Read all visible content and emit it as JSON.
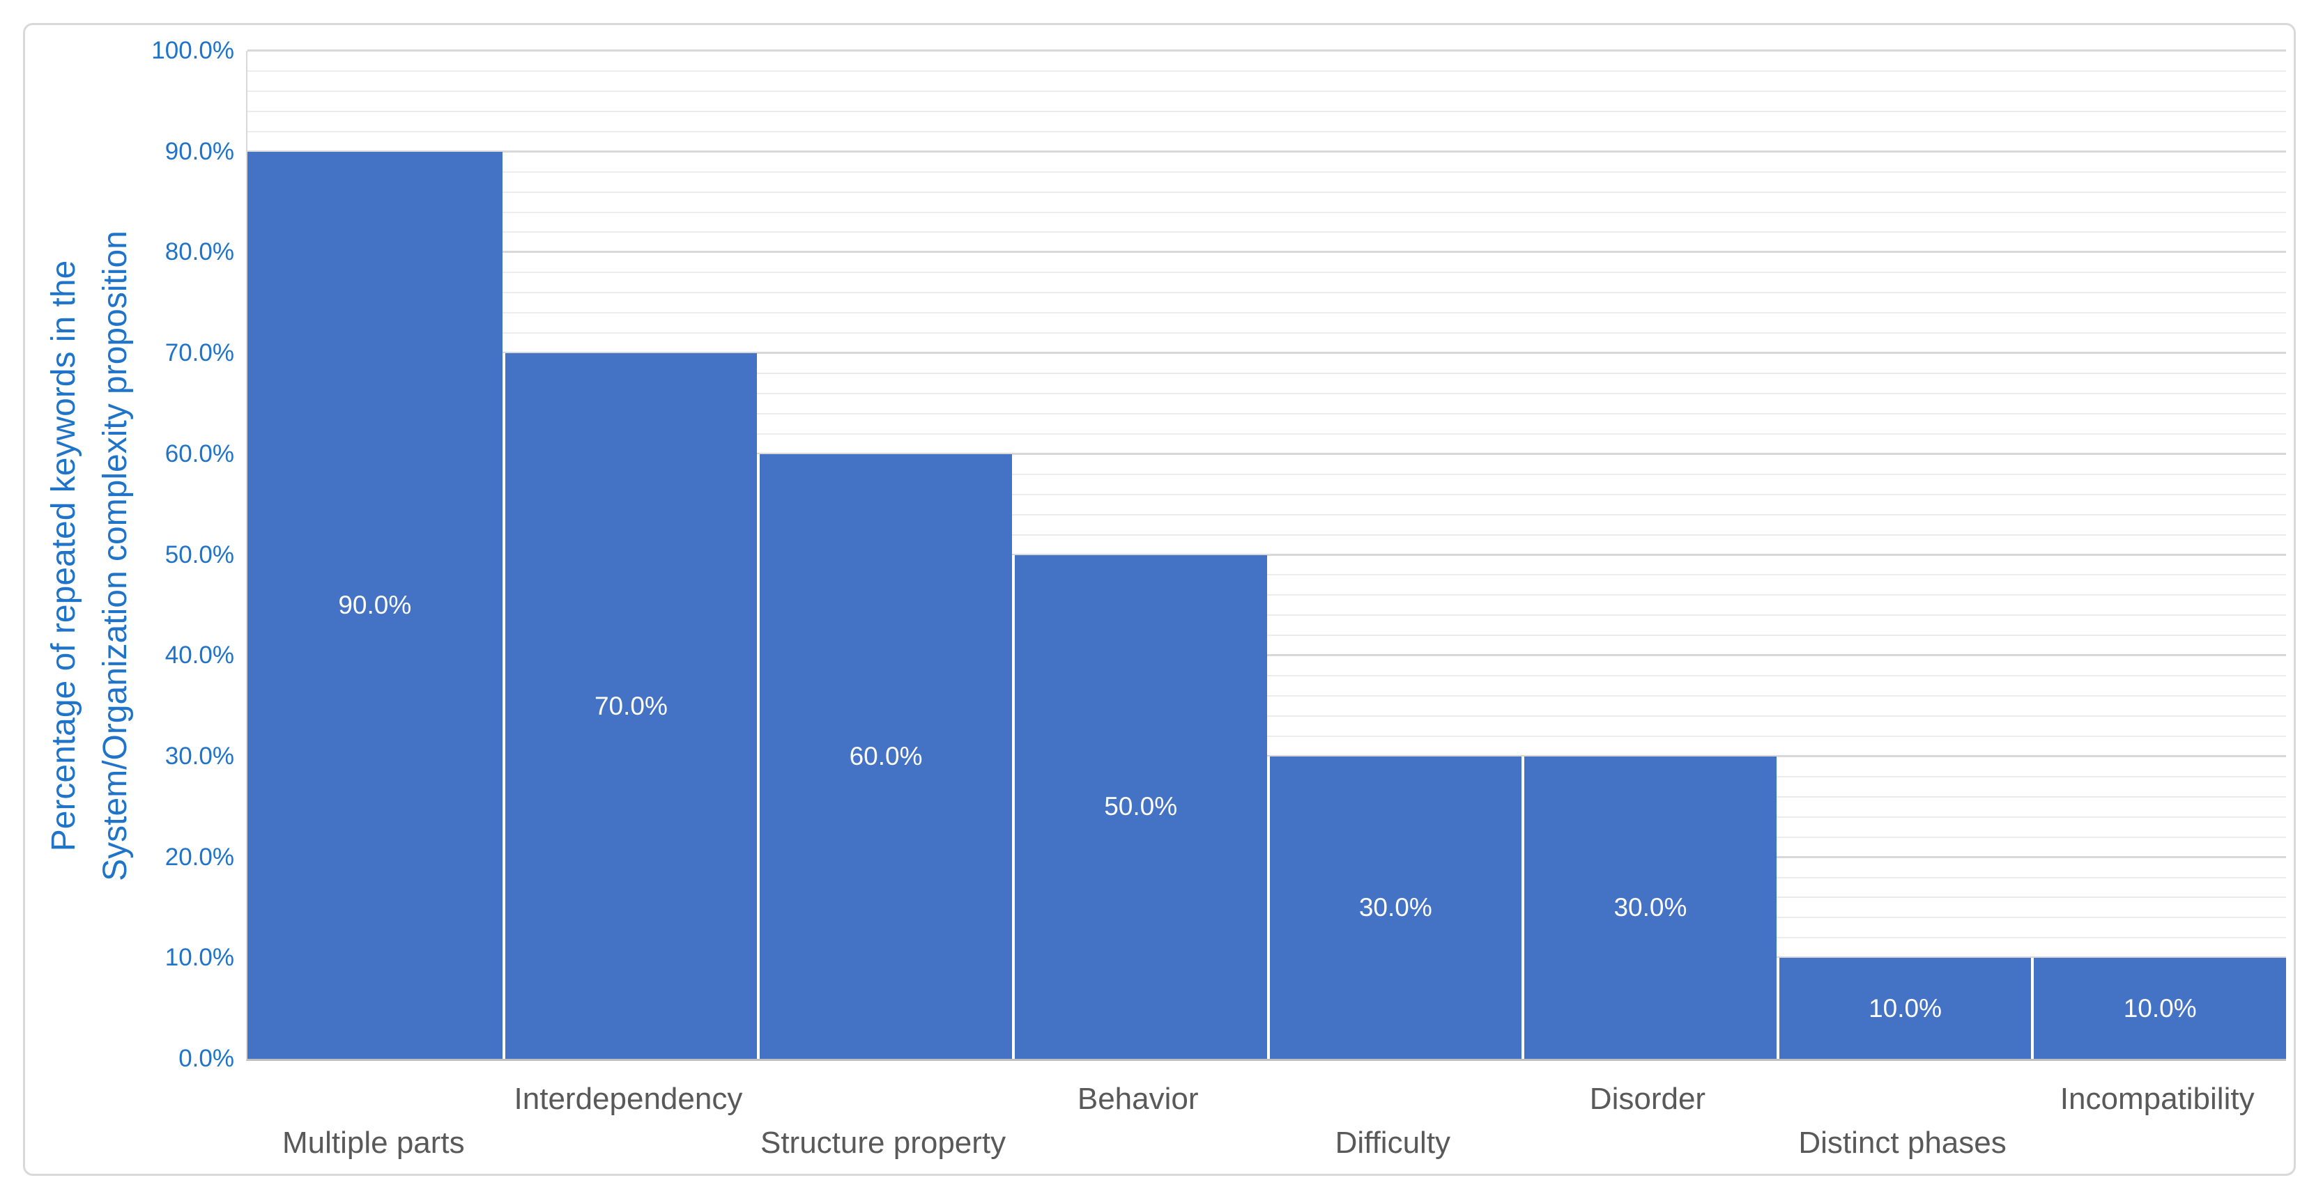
{
  "chart_data": {
    "type": "bar",
    "title": "",
    "categories": [
      "Multiple parts",
      "Interdependency",
      "Structure property",
      "Behavior",
      "Difficulty",
      "Disorder",
      "Distinct phases",
      "Incompatibility"
    ],
    "values": [
      90,
      70,
      60,
      50,
      30,
      30,
      10,
      10
    ],
    "data_labels": [
      "90.0%",
      "70.0%",
      "60.0%",
      "50.0%",
      "30.0%",
      "30.0%",
      "10.0%",
      "10.0%"
    ],
    "y_tick_values": [
      0,
      10,
      20,
      30,
      40,
      50,
      60,
      70,
      80,
      90,
      100
    ],
    "y_tick_labels": [
      "0.0%",
      "10.0%",
      "20.0%",
      "30.0%",
      "40.0%",
      "50.0%",
      "60.0%",
      "70.0%",
      "80.0%",
      "90.0%",
      "100.0%"
    ],
    "ylabel_line1": "Percentage of repeated keywords in the",
    "ylabel_line2": "System/Organization complexity proposition",
    "xlabel": "",
    "ylim": [
      0,
      100
    ],
    "y_major_unit": 10,
    "y_minor_unit": 2,
    "grid": "horizontal major and minor, no vertical",
    "legend": "none",
    "bar_gap": "none (adjacent bars separated by thin white line)",
    "x_labels_staggered": true
  },
  "colors": {
    "bar_fill": "#4472C4",
    "bar_value_label": "#FFFFFF",
    "axis_text_blue": "#1F73C8",
    "category_text": "#595959",
    "gridline_minor": "#ECECEC",
    "gridline_major": "#D8D8D8",
    "axis_line": "#BFBFBF",
    "chart_border": "#D9D9D9",
    "background": "#FFFFFF",
    "bar_separator": "#FFFFFF"
  }
}
